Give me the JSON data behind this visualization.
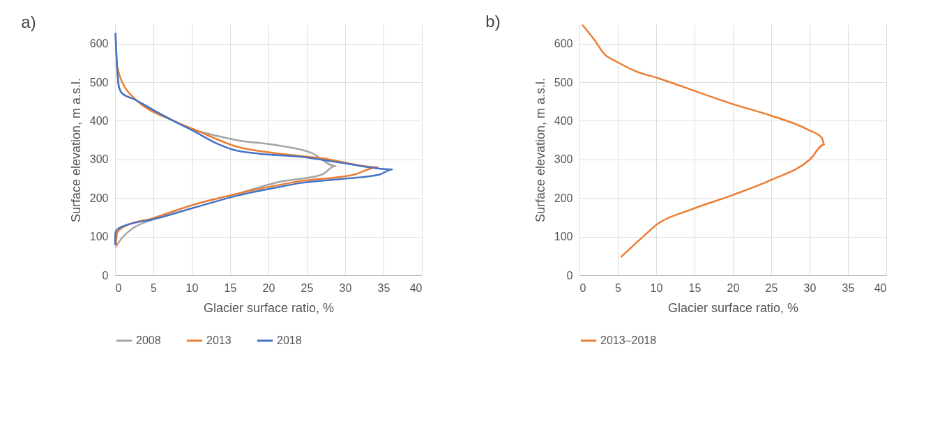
{
  "chart_data": [
    {
      "type": "line",
      "title": "a)",
      "xlabel": "Glacier surface ratio, %",
      "ylabel": "Surface elevation, m a.s.l.",
      "xlim": [
        0,
        40
      ],
      "ylim": [
        0,
        650
      ],
      "xticks": [
        0,
        5,
        10,
        15,
        20,
        25,
        30,
        35,
        40
      ],
      "yticks": [
        0,
        100,
        200,
        300,
        400,
        500,
        600
      ],
      "grid": true,
      "legend": "bottom",
      "line_style": "solid",
      "series": [
        {
          "name": "2008",
          "color": "#a5a5a5",
          "x": [
            0.05,
            0.3,
            0.5,
            0.9,
            2.6,
            4.8,
            7.6,
            10.3,
            11.7,
            15.9,
            21.4,
            25.6,
            28.7,
            27,
            21.4,
            15.9,
            10.3,
            4.8,
            2,
            0.6,
            0.05
          ],
          "values": [
            628,
            528,
            489,
            472,
            455,
            430,
            400,
            376,
            369,
            350,
            336,
            317,
            283,
            261,
            242,
            211,
            183,
            144,
            117,
            89,
            72
          ]
        },
        {
          "name": "2013",
          "color": "#ed7d31",
          "x": [
            0.3,
            0.6,
            1.4,
            2.6,
            7.6,
            10.3,
            15.9,
            21.4,
            27,
            34.2,
            31.2,
            24.2,
            15.9,
            10.3,
            4.8,
            1.4,
            0.3,
            0.1
          ],
          "values": [
            540,
            517,
            483,
            457,
            400,
            378,
            333,
            315,
            303,
            280,
            261,
            244,
            211,
            183,
            147,
            128,
            111,
            78
          ]
        },
        {
          "name": "2018",
          "color": "#4472c4",
          "x": [
            0.05,
            0.3,
            0.5,
            0.9,
            2.6,
            4.8,
            7.6,
            10.3,
            13.1,
            15.3,
            18.7,
            24.2,
            29,
            36.1,
            34.5,
            29.8,
            24.2,
            21.2,
            15.9,
            10.3,
            4.8,
            2,
            0.3,
            0.05,
            0
          ],
          "values": [
            628,
            528,
            489,
            472,
            455,
            430,
            400,
            373,
            343,
            326,
            315,
            307,
            293,
            274,
            261,
            250,
            239,
            228,
            206,
            175,
            144,
            133,
            119,
            111,
            78
          ]
        }
      ]
    },
    {
      "type": "line",
      "title": "b)",
      "xlabel": "Glacier surface ratio, %",
      "ylabel": "Surface elevation, m a.s.l.",
      "xlim": [
        0,
        40
      ],
      "ylim": [
        0,
        650
      ],
      "xticks": [
        0,
        5,
        10,
        15,
        20,
        25,
        30,
        35,
        40
      ],
      "yticks": [
        0,
        100,
        200,
        300,
        400,
        500,
        600
      ],
      "grid": true,
      "legend": "bottom",
      "line_style": "solid",
      "series": [
        {
          "name": "2013–2018",
          "color": "#ed7d31",
          "x": [
            0.36,
            1.9,
            3.3,
            4.9,
            7.4,
            10.2,
            15.8,
            19.9,
            24.9,
            29.7,
            31.6,
            31.9,
            30.1,
            25,
            20,
            14.4,
            10.2,
            8.3,
            5.4
          ],
          "values": [
            649,
            611,
            572,
            553,
            528,
            511,
            472,
            444,
            414,
            378,
            356,
            339,
            301,
            247,
            208,
            169,
            133,
            100,
            47
          ]
        }
      ]
    }
  ]
}
